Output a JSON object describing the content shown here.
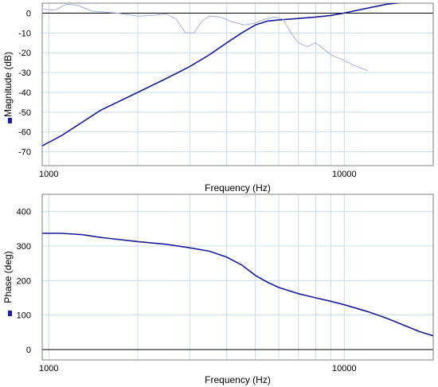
{
  "chart_data": [
    {
      "type": "line",
      "xlabel": "Frequency (Hz)",
      "ylabel": "Magnitude (dB)",
      "xscale": "log",
      "xlim": [
        950,
        20000
      ],
      "ylim": [
        -77,
        5
      ],
      "x_ticks": [
        1000,
        10000
      ],
      "x_tick_labels": [
        "1000",
        "10000"
      ],
      "y_ticks": [
        0,
        -10,
        -20,
        -30,
        -40,
        -50,
        -60,
        -70
      ],
      "y_tick_labels": [
        "0",
        "-10",
        "-20",
        "-30",
        "-40",
        "-50",
        "-60",
        "-70"
      ],
      "grid": true,
      "colors": {
        "series_main": "#1c1ca0",
        "series_ref": "#a8b0e0",
        "zero_line": "#000000",
        "grid": "#c8dcea"
      },
      "series": [
        {
          "style": "solid-dark",
          "points": [
            [
              950,
              -67
            ],
            [
              1100,
              -62
            ],
            [
              1300,
              -55
            ],
            [
              1500,
              -49
            ],
            [
              2000,
              -40
            ],
            [
              2500,
              -33
            ],
            [
              3000,
              -27
            ],
            [
              3500,
              -21
            ],
            [
              4000,
              -15
            ],
            [
              4500,
              -10
            ],
            [
              5000,
              -6
            ],
            [
              5500,
              -4
            ],
            [
              6000,
              -3.5
            ],
            [
              7000,
              -2.7
            ],
            [
              8000,
              -2
            ],
            [
              9000,
              -1.2
            ],
            [
              10000,
              0
            ],
            [
              12000,
              2.5
            ],
            [
              14000,
              4.5
            ],
            [
              16000,
              5.5
            ],
            [
              18000,
              5.5
            ],
            [
              20000,
              5.5
            ]
          ]
        },
        {
          "style": "thin-light",
          "points": [
            [
              950,
              2
            ],
            [
              1050,
              1.5
            ],
            [
              1150,
              4.5
            ],
            [
              1250,
              4
            ],
            [
              1400,
              1
            ],
            [
              1700,
              0
            ],
            [
              2000,
              -1.5
            ],
            [
              2300,
              -1
            ],
            [
              2500,
              -0.5
            ],
            [
              2700,
              -3
            ],
            [
              2900,
              -10
            ],
            [
              3100,
              -10
            ],
            [
              3300,
              -4
            ],
            [
              3500,
              -1.5
            ],
            [
              3800,
              -2
            ],
            [
              4200,
              -4.5
            ],
            [
              4600,
              -6
            ],
            [
              5000,
              -5
            ],
            [
              5400,
              -3
            ],
            [
              5800,
              -2
            ],
            [
              6200,
              -3
            ],
            [
              6600,
              -10
            ],
            [
              7000,
              -15
            ],
            [
              7500,
              -17
            ],
            [
              8000,
              -15
            ],
            [
              8500,
              -18
            ],
            [
              9000,
              -21
            ],
            [
              10000,
              -24
            ],
            [
              11000,
              -27
            ],
            [
              12000,
              -29
            ]
          ]
        }
      ]
    },
    {
      "type": "line",
      "xlabel": "Frequency (Hz)",
      "ylabel": "Phase (deg)",
      "xscale": "log",
      "xlim": [
        950,
        20000
      ],
      "ylim": [
        -30,
        450
      ],
      "x_ticks": [
        1000,
        10000
      ],
      "x_tick_labels": [
        "1000",
        "10000"
      ],
      "y_ticks": [
        0,
        100,
        200,
        300,
        400
      ],
      "y_tick_labels": [
        "0",
        "100",
        "200",
        "300",
        "400"
      ],
      "grid": true,
      "colors": {
        "series_main": "#1c1ca0",
        "zero_line": "#000000",
        "grid": "#c8dcea"
      },
      "series": [
        {
          "style": "solid-dark",
          "points": [
            [
              950,
              337
            ],
            [
              1100,
              337
            ],
            [
              1300,
              333
            ],
            [
              1500,
              325
            ],
            [
              2000,
              313
            ],
            [
              2500,
              305
            ],
            [
              3000,
              295
            ],
            [
              3500,
              285
            ],
            [
              4000,
              268
            ],
            [
              4500,
              245
            ],
            [
              5000,
              215
            ],
            [
              5500,
              195
            ],
            [
              6000,
              180
            ],
            [
              7000,
              162
            ],
            [
              8000,
              150
            ],
            [
              9000,
              140
            ],
            [
              10000,
              130
            ],
            [
              12000,
              110
            ],
            [
              14000,
              90
            ],
            [
              16000,
              70
            ],
            [
              18000,
              52
            ],
            [
              20000,
              40
            ]
          ]
        }
      ]
    }
  ]
}
